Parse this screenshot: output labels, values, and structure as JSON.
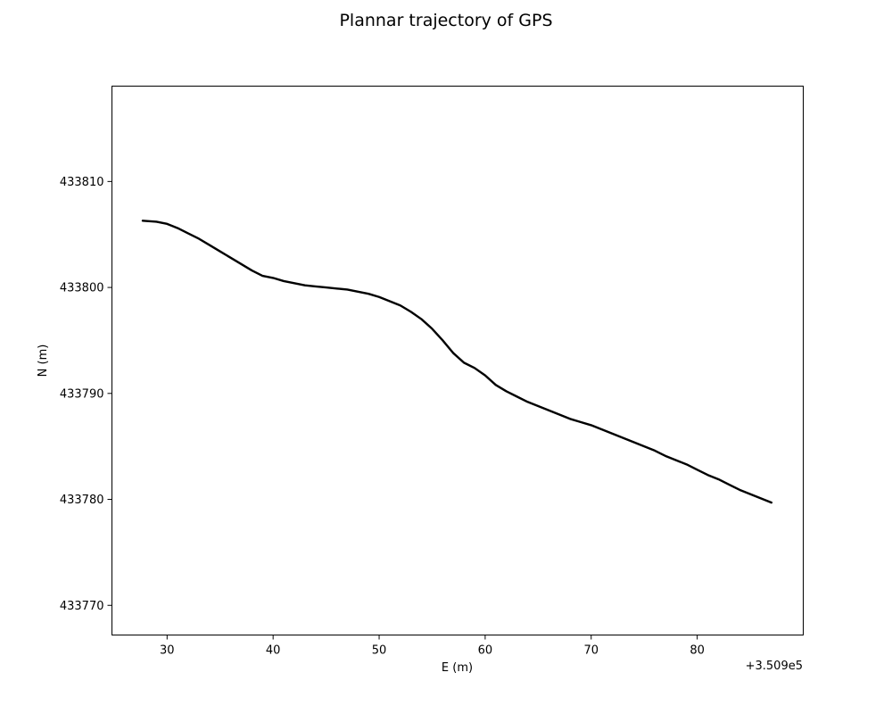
{
  "chart_data": {
    "type": "line",
    "title": "Plannar trajectory of GPS",
    "xlabel": "E (m)",
    "ylabel": "N (m)",
    "x_offset_label": "+3.509e5",
    "xlim": [
      24.8,
      90.0
    ],
    "ylim": [
      433767.2,
      433819.0
    ],
    "x_ticks": [
      30,
      40,
      50,
      60,
      70,
      80
    ],
    "y_ticks": [
      433770,
      433780,
      433790,
      433800,
      433810
    ],
    "grid": false,
    "line_color": "#000000",
    "series": [
      {
        "x": [
          27.7,
          29.0,
          30.0,
          31.0,
          32.0,
          33.0,
          34.0,
          35.0,
          36.0,
          37.0,
          38.0,
          39.0,
          40.0,
          41.0,
          42.0,
          43.0,
          44.0,
          45.0,
          46.0,
          47.0,
          48.0,
          49.0,
          50.0,
          51.0,
          52.0,
          53.0,
          54.0,
          55.0,
          56.0,
          57.0,
          58.0,
          59.0,
          60.0,
          61.0,
          62.0,
          63.0,
          64.0,
          65.0,
          66.0,
          67.0,
          68.0,
          69.0,
          70.0,
          71.0,
          72.0,
          73.0,
          74.0,
          75.0,
          76.0,
          77.0,
          78.0,
          79.0,
          80.0,
          81.0,
          82.0,
          83.0,
          84.0,
          85.0,
          86.0,
          87.0
        ],
        "y": [
          433806.3,
          433806.2,
          433806.0,
          433805.6,
          433805.1,
          433804.6,
          433804.0,
          433803.4,
          433802.8,
          433802.2,
          433801.6,
          433801.1,
          433800.9,
          433800.6,
          433800.4,
          433800.2,
          433800.1,
          433800.0,
          433799.9,
          433799.8,
          433799.6,
          433799.4,
          433799.1,
          433798.7,
          433798.3,
          433797.7,
          433797.0,
          433796.1,
          433795.0,
          433793.8,
          433792.9,
          433792.4,
          433791.7,
          433790.8,
          433790.2,
          433789.7,
          433789.2,
          433788.8,
          433788.4,
          433788.0,
          433787.6,
          433787.3,
          433787.0,
          433786.6,
          433786.2,
          433785.8,
          433785.4,
          433785.0,
          433784.6,
          433784.1,
          433783.7,
          433783.3,
          433782.8,
          433782.3,
          433781.9,
          433781.4,
          433780.9,
          433780.5,
          433780.1,
          433779.7
        ]
      }
    ]
  }
}
